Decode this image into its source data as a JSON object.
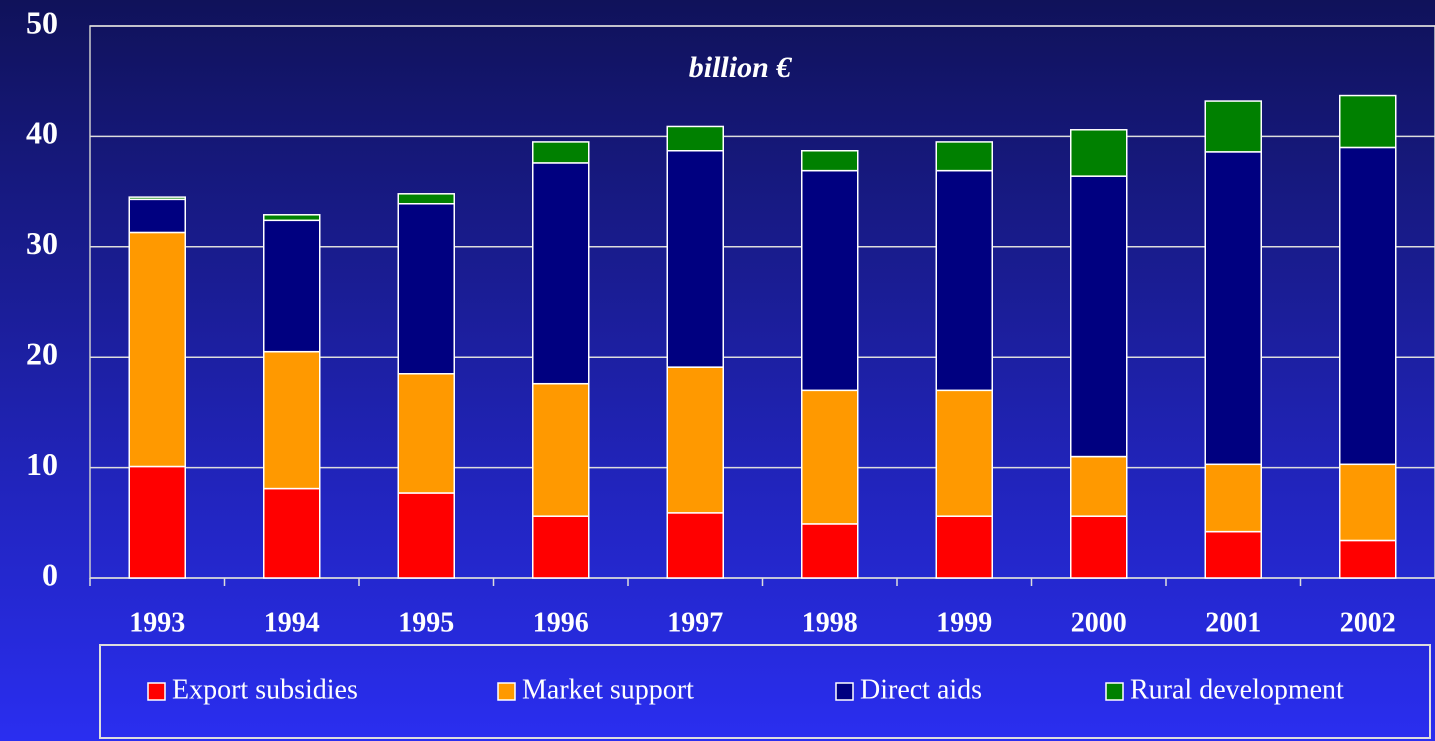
{
  "chart_data": {
    "type": "stacked-bar",
    "title": "billion €",
    "categories": [
      "1993",
      "1994",
      "1995",
      "1996",
      "1997",
      "1998",
      "1999",
      "2000",
      "2001",
      "2002"
    ],
    "series": [
      {
        "name": "Export subsidies",
        "color": "#ff0000",
        "values": [
          10.1,
          8.1,
          7.7,
          5.6,
          5.9,
          4.9,
          5.6,
          5.6,
          4.2,
          3.4
        ]
      },
      {
        "name": "Market support",
        "color": "#ff9900",
        "values": [
          21.2,
          12.4,
          10.8,
          12.0,
          13.2,
          12.1,
          11.4,
          5.4,
          6.1,
          6.9
        ]
      },
      {
        "name": "Direct aids",
        "color": "#000080",
        "values": [
          3.0,
          11.9,
          15.4,
          20.0,
          19.6,
          19.9,
          19.9,
          25.4,
          28.3,
          28.7
        ]
      },
      {
        "name": "Rural development",
        "color": "#008000",
        "values": [
          0.2,
          0.5,
          0.9,
          1.9,
          2.2,
          1.8,
          2.6,
          4.2,
          4.6,
          4.7
        ]
      }
    ],
    "ylim": [
      0,
      50
    ],
    "yticks": [
      0,
      10,
      20,
      30,
      40,
      50
    ],
    "grid": true,
    "legend": "bottom"
  }
}
